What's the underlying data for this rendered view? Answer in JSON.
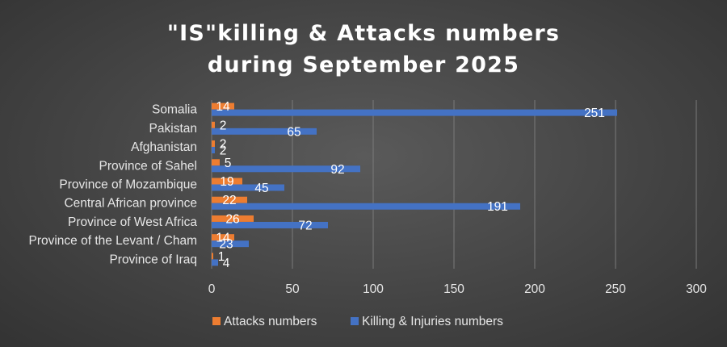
{
  "chart_data": {
    "type": "bar",
    "orientation": "horizontal",
    "title_lines": [
      "\"IS\"killing & Attacks numbers",
      "during September 2025"
    ],
    "categories": [
      "Somalia",
      "Pakistan",
      "Afghanistan",
      "Province of Sahel",
      "Province of Mozambique",
      "Central African province",
      "Province of West Africa",
      "Province of the Levant / Cham",
      "Province of Iraq"
    ],
    "series": [
      {
        "name": "Attacks numbers",
        "color": "#ed7d31",
        "values": [
          14,
          2,
          2,
          5,
          19,
          22,
          26,
          14,
          1
        ]
      },
      {
        "name": "Killing & Injuries numbers",
        "color": "#4472c4",
        "values": [
          251,
          65,
          2,
          92,
          45,
          191,
          72,
          23,
          4
        ]
      }
    ],
    "xlim": [
      0,
      300
    ],
    "xticks": [
      "0",
      "50",
      "100",
      "150",
      "200",
      "250",
      "300"
    ],
    "grid": true,
    "legend_position": "bottom"
  }
}
